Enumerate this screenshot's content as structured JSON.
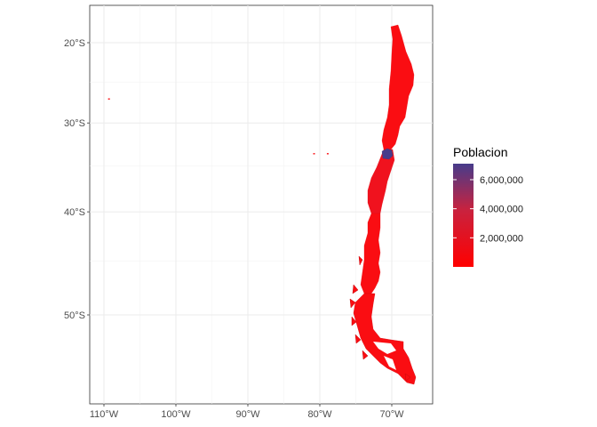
{
  "chart_data": {
    "type": "choropleth",
    "title": "",
    "xlabel": "",
    "ylabel": "",
    "x_ticks": [
      {
        "value": -110,
        "label": "110°W"
      },
      {
        "value": -100,
        "label": "100°W"
      },
      {
        "value": -90,
        "label": "90°W"
      },
      {
        "value": -80,
        "label": "80°W"
      },
      {
        "value": -70,
        "label": "70°W"
      }
    ],
    "y_ticks": [
      {
        "value": -20,
        "label": "20°S"
      },
      {
        "value": -30,
        "label": "30°S"
      },
      {
        "value": -40,
        "label": "40°S"
      },
      {
        "value": -50,
        "label": "50°S"
      }
    ],
    "xlim": [
      -110.6,
      -65.3
    ],
    "ylim": [
      -56.6,
      -16.6
    ],
    "grid": true,
    "legend": {
      "title": "Poblacion",
      "placement": "right",
      "min": 0,
      "max": 7100000,
      "low_color": "#ff0000",
      "high_color": "#473c8b",
      "breaks": [
        {
          "value": 2000000,
          "label": "2,000,000"
        },
        {
          "value": 4000000,
          "label": "4,000,000"
        },
        {
          "value": 6000000,
          "label": "6,000,000"
        }
      ]
    },
    "regions_note_colors": {
      "mainland": "#fa0d12",
      "capital_region": "#473c8b"
    },
    "islands": [
      {
        "lon": -109.3,
        "lat": -27.1
      },
      {
        "lon": -80.8,
        "lat": -33.6
      },
      {
        "lon": -78.9,
        "lat": -33.6
      }
    ]
  }
}
